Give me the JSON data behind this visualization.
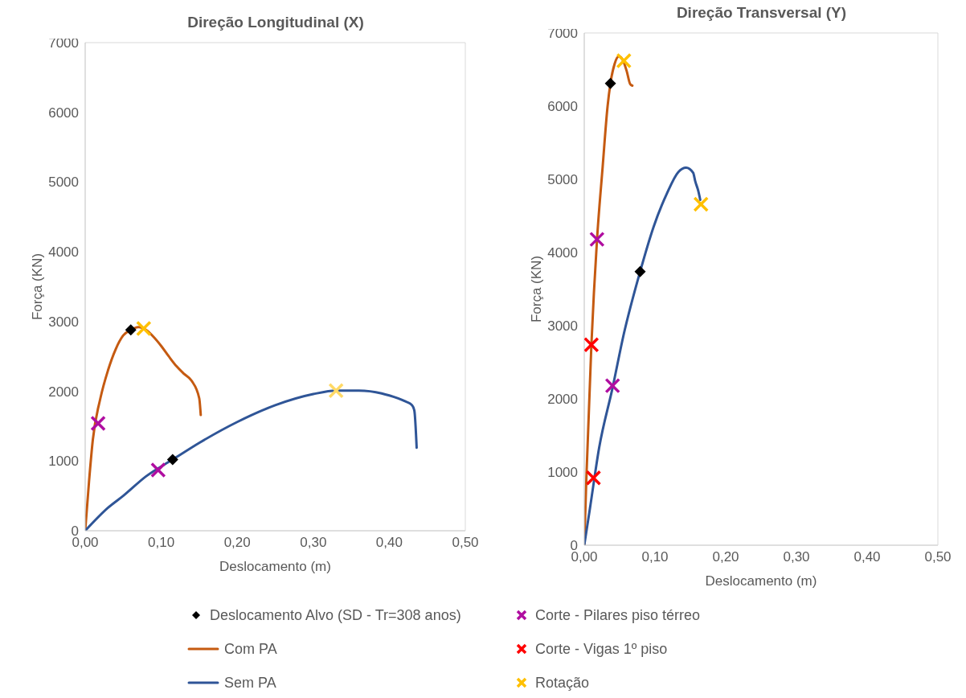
{
  "chart_data": [
    {
      "type": "line",
      "title": "Direção Longitudinal (X)",
      "xlabel": "Deslocamento (m)",
      "ylabel": "Força (KN)",
      "xlim": [
        0,
        0.5
      ],
      "xticks": [
        {
          "value": 0,
          "label": "0,00"
        },
        {
          "value": 0.1,
          "label": "0,10"
        },
        {
          "value": 0.2,
          "label": "0,20"
        },
        {
          "value": 0.3,
          "label": "0,30"
        },
        {
          "value": 0.4,
          "label": "0,40"
        },
        {
          "value": 0.5,
          "label": "0,50"
        }
      ],
      "ylim": [
        0,
        7000
      ],
      "yticks": [
        0,
        1000,
        2000,
        3000,
        4000,
        5000,
        6000,
        7000
      ],
      "grid": false,
      "legend": "bottom",
      "series": [
        {
          "type": "scatter",
          "name": "Deslocamento Alvo (SD - Tr=308 anos)",
          "color": "#000000",
          "marker": "diamond",
          "x": [
            0.06,
            0.115
          ],
          "values": [
            2880,
            1020
          ]
        },
        {
          "type": "line",
          "name": "Com PA",
          "color": "#c55a11",
          "marker": "none",
          "line_style": "solid",
          "x": [
            0,
            0.005,
            0.01,
            0.02,
            0.03,
            0.04,
            0.05,
            0.06,
            0.07,
            0.08,
            0.09,
            0.1,
            0.11,
            0.12,
            0.13,
            0.14,
            0.15,
            0.152
          ],
          "values": [
            0,
            700,
            1300,
            1900,
            2300,
            2600,
            2800,
            2880,
            2920,
            2880,
            2780,
            2650,
            2500,
            2360,
            2250,
            2150,
            1900,
            1660
          ]
        },
        {
          "type": "line",
          "name": "Sem PA",
          "color": "#2f5597",
          "marker": "none",
          "line_style": "solid",
          "x": [
            0,
            0.03,
            0.05,
            0.08,
            0.115,
            0.15,
            0.2,
            0.25,
            0.3,
            0.33,
            0.36,
            0.39,
            0.4,
            0.42,
            0.43,
            0.433,
            0.436
          ],
          "values": [
            0,
            330,
            500,
            780,
            1020,
            1260,
            1560,
            1800,
            1960,
            2010,
            2010,
            1970,
            1940,
            1860,
            1800,
            1720,
            1190
          ]
        },
        {
          "type": "scatter",
          "name": "Corte - Pilares piso térreo",
          "color": "#b00ea0",
          "marker": "cross",
          "x": [
            0.017,
            0.096
          ],
          "values": [
            1540,
            870
          ]
        },
        {
          "type": "scatter",
          "name": "Rotação",
          "color": "#ffc000",
          "colors": [
            "#ffc000",
            "#ffd966"
          ],
          "marker": "cross",
          "x": [
            0.077,
            0.33
          ],
          "values": [
            2900,
            2010
          ]
        }
      ]
    },
    {
      "type": "line",
      "title": "Direção Transversal (Y)",
      "xlabel": "Deslocamento (m)",
      "ylabel": "Força (KN)",
      "xlim": [
        0,
        0.5
      ],
      "xticks": [
        {
          "value": 0,
          "label": "0,00"
        },
        {
          "value": 0.1,
          "label": "0,10"
        },
        {
          "value": 0.2,
          "label": "0,20"
        },
        {
          "value": 0.3,
          "label": "0,30"
        },
        {
          "value": 0.4,
          "label": "0,40"
        },
        {
          "value": 0.5,
          "label": "0,50"
        }
      ],
      "ylim": [
        0,
        7000
      ],
      "yticks": [
        0,
        1000,
        2000,
        3000,
        4000,
        5000,
        6000,
        7000
      ],
      "grid": false,
      "legend": "bottom",
      "series": [
        {
          "type": "scatter",
          "name": "Deslocamento Alvo (SD - Tr=308 anos)",
          "color": "#000000",
          "marker": "diamond",
          "x": [
            0.037,
            0.079
          ],
          "values": [
            6310,
            3740
          ]
        },
        {
          "type": "line",
          "name": "Com PA",
          "color": "#c55a11",
          "marker": "none",
          "line_style": "solid",
          "x": [
            0,
            0.003,
            0.01,
            0.018,
            0.026,
            0.033,
            0.037,
            0.043,
            0.049,
            0.055,
            0.06,
            0.065,
            0.068
          ],
          "values": [
            0,
            920,
            2720,
            4170,
            5170,
            6000,
            6310,
            6580,
            6680,
            6620,
            6480,
            6300,
            6280
          ]
        },
        {
          "type": "line",
          "name": "Sem PA",
          "color": "#2f5597",
          "marker": "none",
          "line_style": "solid",
          "x": [
            0,
            0.008,
            0.021,
            0.04,
            0.056,
            0.079,
            0.098,
            0.117,
            0.133,
            0.144,
            0.154,
            0.157,
            0.161,
            0.164
          ],
          "values": [
            0,
            500,
            1330,
            2150,
            2890,
            3740,
            4350,
            4810,
            5100,
            5160,
            5090,
            4970,
            4850,
            4720
          ]
        },
        {
          "type": "scatter",
          "name": "Corte - Pilares piso térreo",
          "color": "#b00ea0",
          "marker": "cross",
          "x": [
            0.018,
            0.04
          ],
          "values": [
            4180,
            2180
          ]
        },
        {
          "type": "scatter",
          "name": "Corte - Vigas 1º piso",
          "color": "#ff0000",
          "marker": "cross",
          "x": [
            0.01,
            0.013
          ],
          "values": [
            2740,
            920
          ]
        },
        {
          "type": "scatter",
          "name": "Rotação",
          "color": "#ffc000",
          "marker": "cross",
          "x": [
            0.056,
            0.165
          ],
          "values": [
            6620,
            4660
          ]
        }
      ]
    }
  ]
}
